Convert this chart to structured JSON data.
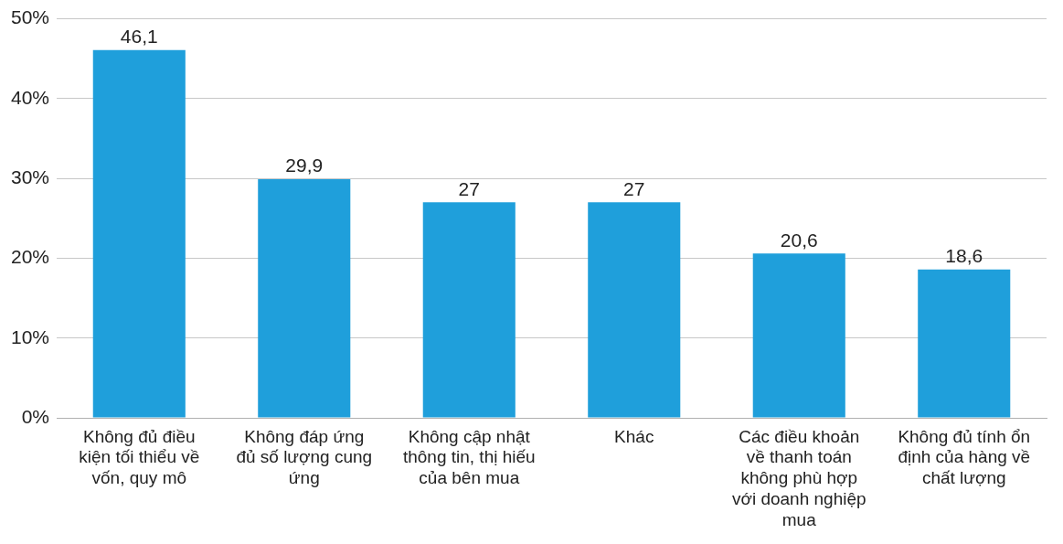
{
  "chart_data": {
    "type": "bar",
    "categories": [
      "Không đủ điều kiện tối thiểu về vốn, quy mô",
      "Không đáp ứng đủ số lượng cung ứng",
      "Không cập nhật thông tin, thị hiếu của bên mua",
      "Khác",
      "Các điều khoản về thanh toán không phù hợp với doanh nghiệp mua",
      "Không đủ tính ổn định của hàng về chất lượng"
    ],
    "values": [
      46.1,
      29.9,
      27,
      27,
      20.6,
      18.6
    ],
    "value_labels": [
      "46,1",
      "29,9",
      "27",
      "27",
      "20,6",
      "18,6"
    ],
    "color": "#1f9fdb",
    "ylim": [
      0,
      50
    ],
    "yticks": [
      {
        "value": 0,
        "label": "0%"
      },
      {
        "value": 10,
        "label": "10%"
      },
      {
        "value": 20,
        "label": "20%"
      },
      {
        "value": 30,
        "label": "30%"
      },
      {
        "value": 40,
        "label": "40%"
      },
      {
        "value": 50,
        "label": "50%"
      }
    ],
    "grid": "y",
    "legend": false
  }
}
